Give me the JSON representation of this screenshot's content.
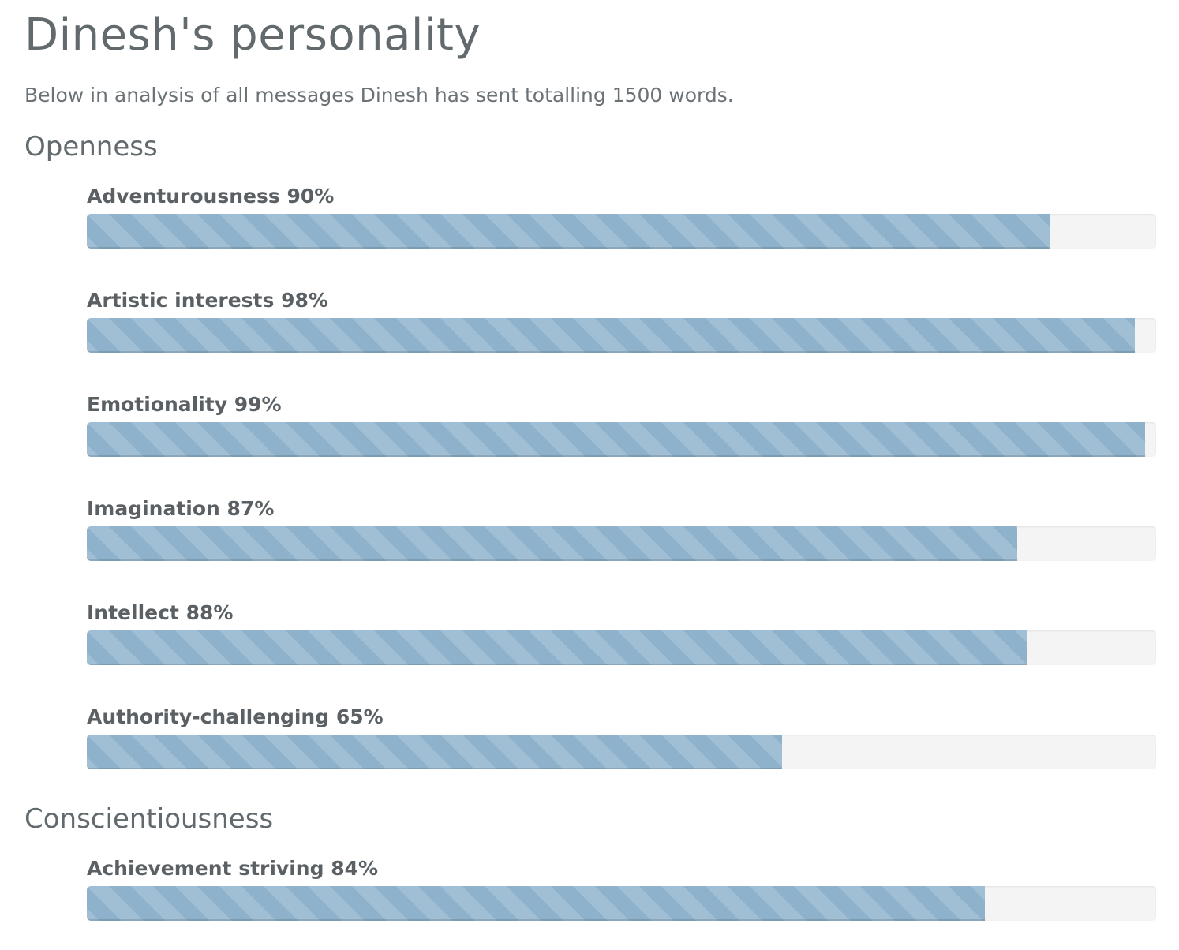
{
  "page": {
    "title": "Dinesh's personality",
    "intro": "Below in analysis of all messages Dinesh has sent totalling 1500 words."
  },
  "sections": [
    {
      "title": "Openness",
      "traits": [
        {
          "label": "Adventurousness 90%",
          "value": 90
        },
        {
          "label": "Artistic interests 98%",
          "value": 98
        },
        {
          "label": "Emotionality 99%",
          "value": 99
        },
        {
          "label": "Imagination 87%",
          "value": 87
        },
        {
          "label": "Intellect 88%",
          "value": 88
        },
        {
          "label": "Authority-challenging 65%",
          "value": 65
        }
      ]
    },
    {
      "title": "Conscientiousness",
      "traits": [
        {
          "label": "Achievement striving 84%",
          "value": 84
        }
      ]
    }
  ],
  "colors": {
    "bar_fill": "#8eb2cb",
    "track": "#f4f4f4",
    "text": "#5f6568"
  }
}
